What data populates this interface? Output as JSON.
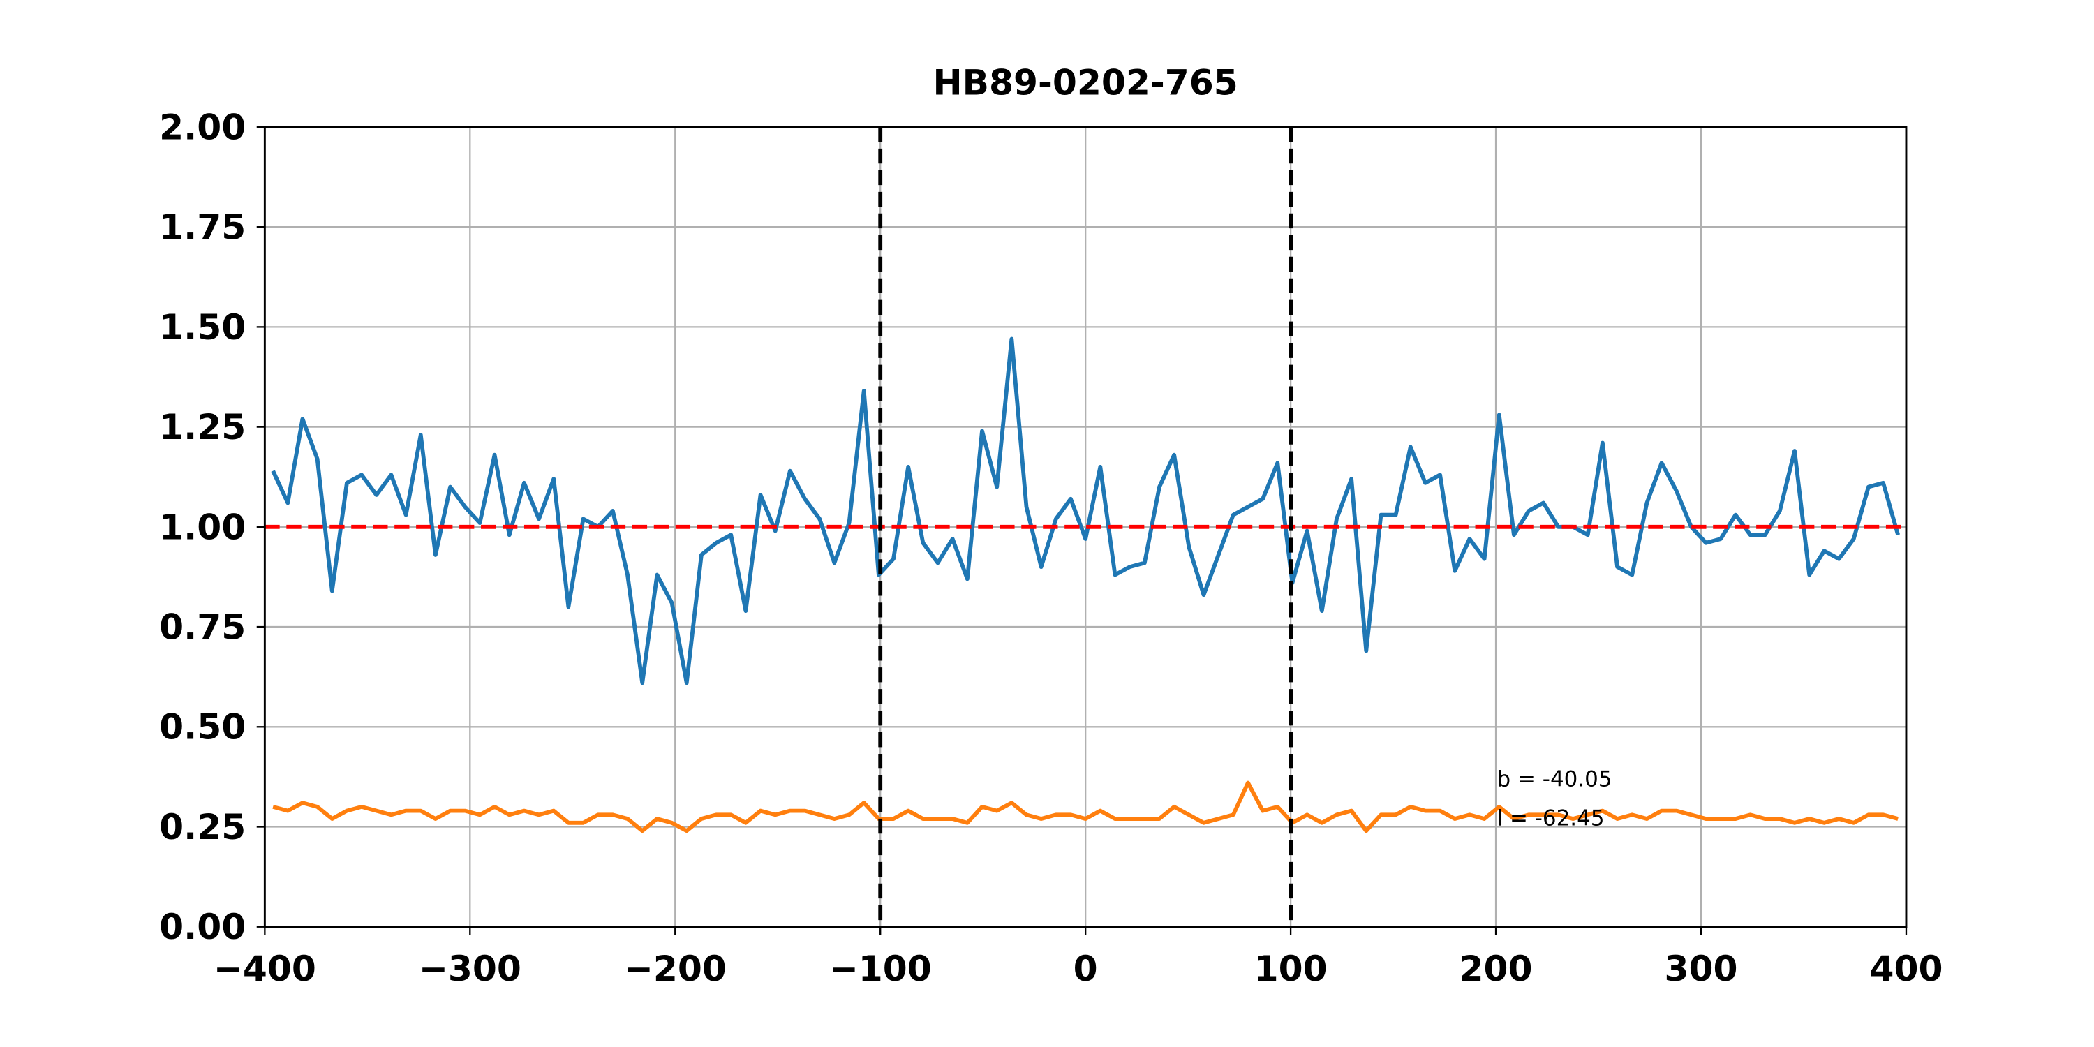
{
  "chart_data": {
    "type": "line",
    "title": "HB89-0202-765",
    "x": [
      -396,
      -388.8,
      -381.6,
      -374.4,
      -367.2,
      -360,
      -352.8,
      -345.6,
      -338.4,
      -331.2,
      -324,
      -316.8,
      -309.6,
      -302.4,
      -295.2,
      -288,
      -280.8,
      -273.6,
      -266.4,
      -259.2,
      -252,
      -244.8,
      -237.6,
      -230.4,
      -223.2,
      -216,
      -208.8,
      -201.6,
      -194.4,
      -187.2,
      -180,
      -172.8,
      -165.6,
      -158.4,
      -151.2,
      -144,
      -136.8,
      -129.6,
      -122.4,
      -115.2,
      -108,
      -100.8,
      -93.6,
      -86.4,
      -79.2,
      -72,
      -64.8,
      -57.6,
      -50.4,
      -43.2,
      -36,
      -28.8,
      -21.6,
      -14.4,
      -7.2,
      0,
      7.2,
      14.4,
      21.6,
      28.8,
      36,
      43.2,
      50.4,
      57.6,
      64.8,
      72,
      79.2,
      86.4,
      93.6,
      100.8,
      108,
      115.2,
      122.4,
      129.6,
      136.8,
      144,
      151.2,
      158.4,
      165.6,
      172.8,
      180,
      187.2,
      194.4,
      201.6,
      208.8,
      216,
      223.2,
      230.4,
      237.6,
      244.8,
      252,
      259.2,
      266.4,
      273.6,
      280.8,
      288,
      295.2,
      302.4,
      309.6,
      316.8,
      324,
      331.2,
      338.4,
      345.6,
      352.8,
      360,
      367.2,
      374.4,
      381.6,
      388.8,
      396
    ],
    "series": [
      {
        "color": "#1f77b4",
        "values": [
          1.14,
          1.06,
          1.27,
          1.17,
          0.84,
          1.11,
          1.13,
          1.08,
          1.13,
          1.03,
          1.23,
          0.93,
          1.1,
          1.05,
          1.01,
          1.18,
          0.98,
          1.11,
          1.02,
          1.12,
          0.8,
          1.02,
          1.0,
          1.04,
          0.88,
          0.61,
          0.88,
          0.81,
          0.61,
          0.93,
          0.96,
          0.98,
          0.79,
          1.08,
          0.99,
          1.14,
          1.07,
          1.02,
          0.91,
          1.01,
          1.34,
          0.88,
          0.92,
          1.15,
          0.96,
          0.91,
          0.97,
          0.87,
          1.24,
          1.1,
          1.47,
          1.05,
          0.9,
          1.02,
          1.07,
          0.97,
          1.15,
          0.88,
          0.9,
          0.91,
          1.1,
          1.18,
          0.95,
          0.83,
          0.93,
          1.03,
          1.05,
          1.07,
          1.16,
          0.86,
          0.99,
          0.79,
          1.02,
          1.12,
          0.69,
          1.03,
          1.03,
          1.2,
          1.11,
          1.13,
          0.89,
          0.97,
          0.92,
          1.28,
          0.98,
          1.04,
          1.06,
          1.0,
          1.0,
          0.98,
          1.21,
          0.9,
          0.88,
          1.06,
          1.16,
          1.09,
          1.0,
          0.96,
          0.97,
          1.03,
          0.98,
          0.98,
          1.04,
          1.19,
          0.88,
          0.94,
          0.92,
          0.97,
          1.1,
          1.11,
          0.98
        ]
      },
      {
        "color": "#ff7f0e",
        "values": [
          0.3,
          0.29,
          0.31,
          0.3,
          0.27,
          0.29,
          0.3,
          0.29,
          0.28,
          0.29,
          0.29,
          0.27,
          0.29,
          0.29,
          0.28,
          0.3,
          0.28,
          0.29,
          0.28,
          0.29,
          0.26,
          0.26,
          0.28,
          0.28,
          0.27,
          0.24,
          0.27,
          0.26,
          0.24,
          0.27,
          0.28,
          0.28,
          0.26,
          0.29,
          0.28,
          0.29,
          0.29,
          0.28,
          0.27,
          0.28,
          0.31,
          0.27,
          0.27,
          0.29,
          0.27,
          0.27,
          0.27,
          0.26,
          0.3,
          0.29,
          0.31,
          0.28,
          0.27,
          0.28,
          0.28,
          0.27,
          0.29,
          0.27,
          0.27,
          0.27,
          0.27,
          0.3,
          0.28,
          0.26,
          0.27,
          0.28,
          0.36,
          0.29,
          0.3,
          0.26,
          0.28,
          0.26,
          0.28,
          0.29,
          0.24,
          0.28,
          0.28,
          0.3,
          0.29,
          0.29,
          0.27,
          0.28,
          0.27,
          0.3,
          0.27,
          0.28,
          0.28,
          0.28,
          0.27,
          0.28,
          0.29,
          0.27,
          0.28,
          0.27,
          0.29,
          0.29,
          0.28,
          0.27,
          0.27,
          0.27,
          0.28,
          0.27,
          0.27,
          0.26,
          0.27,
          0.26,
          0.27,
          0.26,
          0.28,
          0.28,
          0.27
        ]
      }
    ],
    "xlim": [
      -400,
      400
    ],
    "xticks": [
      {
        "value": -400,
        "label": "−400"
      },
      {
        "value": -300,
        "label": "−300"
      },
      {
        "value": -200,
        "label": "−200"
      },
      {
        "value": -100,
        "label": "−100"
      },
      0,
      100,
      200,
      300,
      400
    ],
    "ylim": [
      0,
      2
    ],
    "yticks": [
      {
        "value": 0,
        "label": "0.00"
      },
      {
        "value": 0.25,
        "label": "0.25"
      },
      {
        "value": 0.5,
        "label": "0.50"
      },
      {
        "value": 0.75,
        "label": "0.75"
      },
      {
        "value": 1,
        "label": "1.00"
      },
      {
        "value": 1.25,
        "label": "1.25"
      },
      {
        "value": 1.5,
        "label": "1.50"
      },
      {
        "value": 1.75,
        "label": "1.75"
      },
      {
        "value": 2,
        "label": "2.00"
      }
    ],
    "grid": true,
    "vlines": [
      -100,
      100
    ],
    "vline_color": "#000000",
    "hline": 1,
    "hline_color": "#ff0000",
    "annotations": [
      "b = -40.05",
      "l = -62.45"
    ]
  }
}
